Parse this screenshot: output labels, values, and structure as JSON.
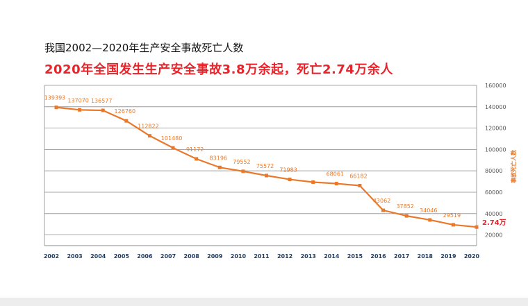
{
  "page_title": "我国2002—2020年生产安全事故死亡人数",
  "headline": "2020年全国发生生产安全事故3.8万余起，死亡2.74万余人",
  "chart_data": {
    "type": "line",
    "title": "我国2002—2020年生产安全事故死亡人数",
    "xlabel": "",
    "ylabel": "事故死亡人数",
    "categories": [
      "2002",
      "2003",
      "2004",
      "2005",
      "2006",
      "2007",
      "2008",
      "2009",
      "2010",
      "2011",
      "2012",
      "2013",
      "2014",
      "2015",
      "2016",
      "2017",
      "2018",
      "2019",
      "2020"
    ],
    "series": [
      {
        "name": "事故死亡人数",
        "values": [
          139393,
          137070,
          136577,
          126760,
          112822,
          101480,
          91172,
          83196,
          79552,
          75572,
          71983,
          69434,
          68061,
          66182,
          43062,
          37852,
          34046,
          29519,
          27400
        ],
        "labels": [
          "139393",
          "137070",
          "136577",
          "126760",
          "112822",
          "101480",
          "91172",
          "83196",
          "79552",
          "75572",
          "71983",
          "",
          "68061",
          "66182",
          "43062",
          "37852",
          "34046",
          "29519",
          "2.74万"
        ]
      }
    ],
    "ylim": [
      10000,
      160000
    ],
    "y_ticks": [
      "20000",
      "40000",
      "60000",
      "80000",
      "100000",
      "120000",
      "140000",
      "160000"
    ],
    "y_tick_values": [
      20000,
      40000,
      60000,
      80000,
      100000,
      120000,
      140000,
      160000
    ],
    "y_axis_side": "right",
    "grid": true,
    "colors": {
      "line": "#e8792a",
      "highlight_label": "#e8232a",
      "year_labels": "#1f3a5f",
      "grid": "#8a8a8a"
    }
  }
}
